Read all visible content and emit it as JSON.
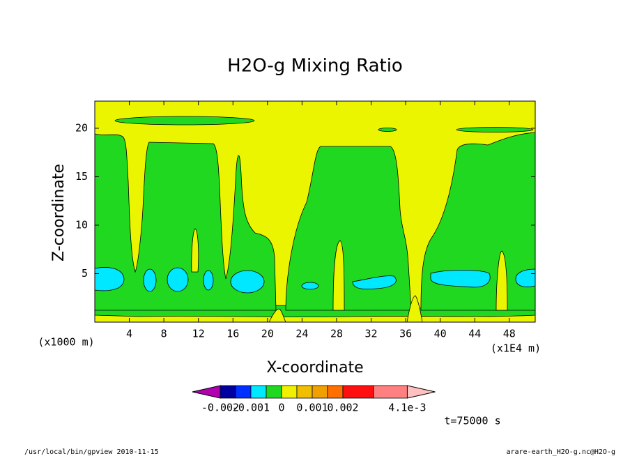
{
  "chart_data": {
    "type": "contour",
    "title": "H2O-g Mixing Ratio",
    "xlabel": "X-coordinate",
    "ylabel": "Z-coordinate",
    "x_unit_left": "(x1000 m)",
    "x_unit_right": "(x1E4 m)",
    "xlim": [
      0,
      51
    ],
    "ylim": [
      0,
      22.8
    ],
    "xticks": [
      4,
      8,
      12,
      16,
      20,
      24,
      28,
      32,
      36,
      40,
      44,
      48
    ],
    "yticks": [
      5,
      10,
      15,
      20
    ],
    "colorbar": {
      "levels": [
        -0.002,
        -0.0015,
        -0.001,
        -0.0005,
        0,
        0.0005,
        0.001,
        0.0015,
        0.002,
        0.003,
        0.0041
      ],
      "colors": [
        "#b000b0",
        "#0000a0",
        "#0030ff",
        "#00e8ff",
        "#20d820",
        "#f0f000",
        "#f0c000",
        "#f0a000",
        "#ff7000",
        "#ff1010",
        "#ff8080",
        "#ffc0c0"
      ],
      "ticks": [
        {
          "value": -0.002,
          "label": "-0.002"
        },
        {
          "value": -0.001,
          "label": "-0.001"
        },
        {
          "value": 0,
          "label": "0"
        },
        {
          "value": 0.001,
          "label": "0.001"
        },
        {
          "value": 0.002,
          "label": "0.002"
        },
        {
          "value": 0.0041,
          "label": "4.1e-3"
        }
      ]
    },
    "time_label": "t=75000 s",
    "footer_left": "/usr/local/bin/gpview  2010-11-15",
    "footer_right": "arare-earth_H2O-g.nc@H2O-g"
  }
}
